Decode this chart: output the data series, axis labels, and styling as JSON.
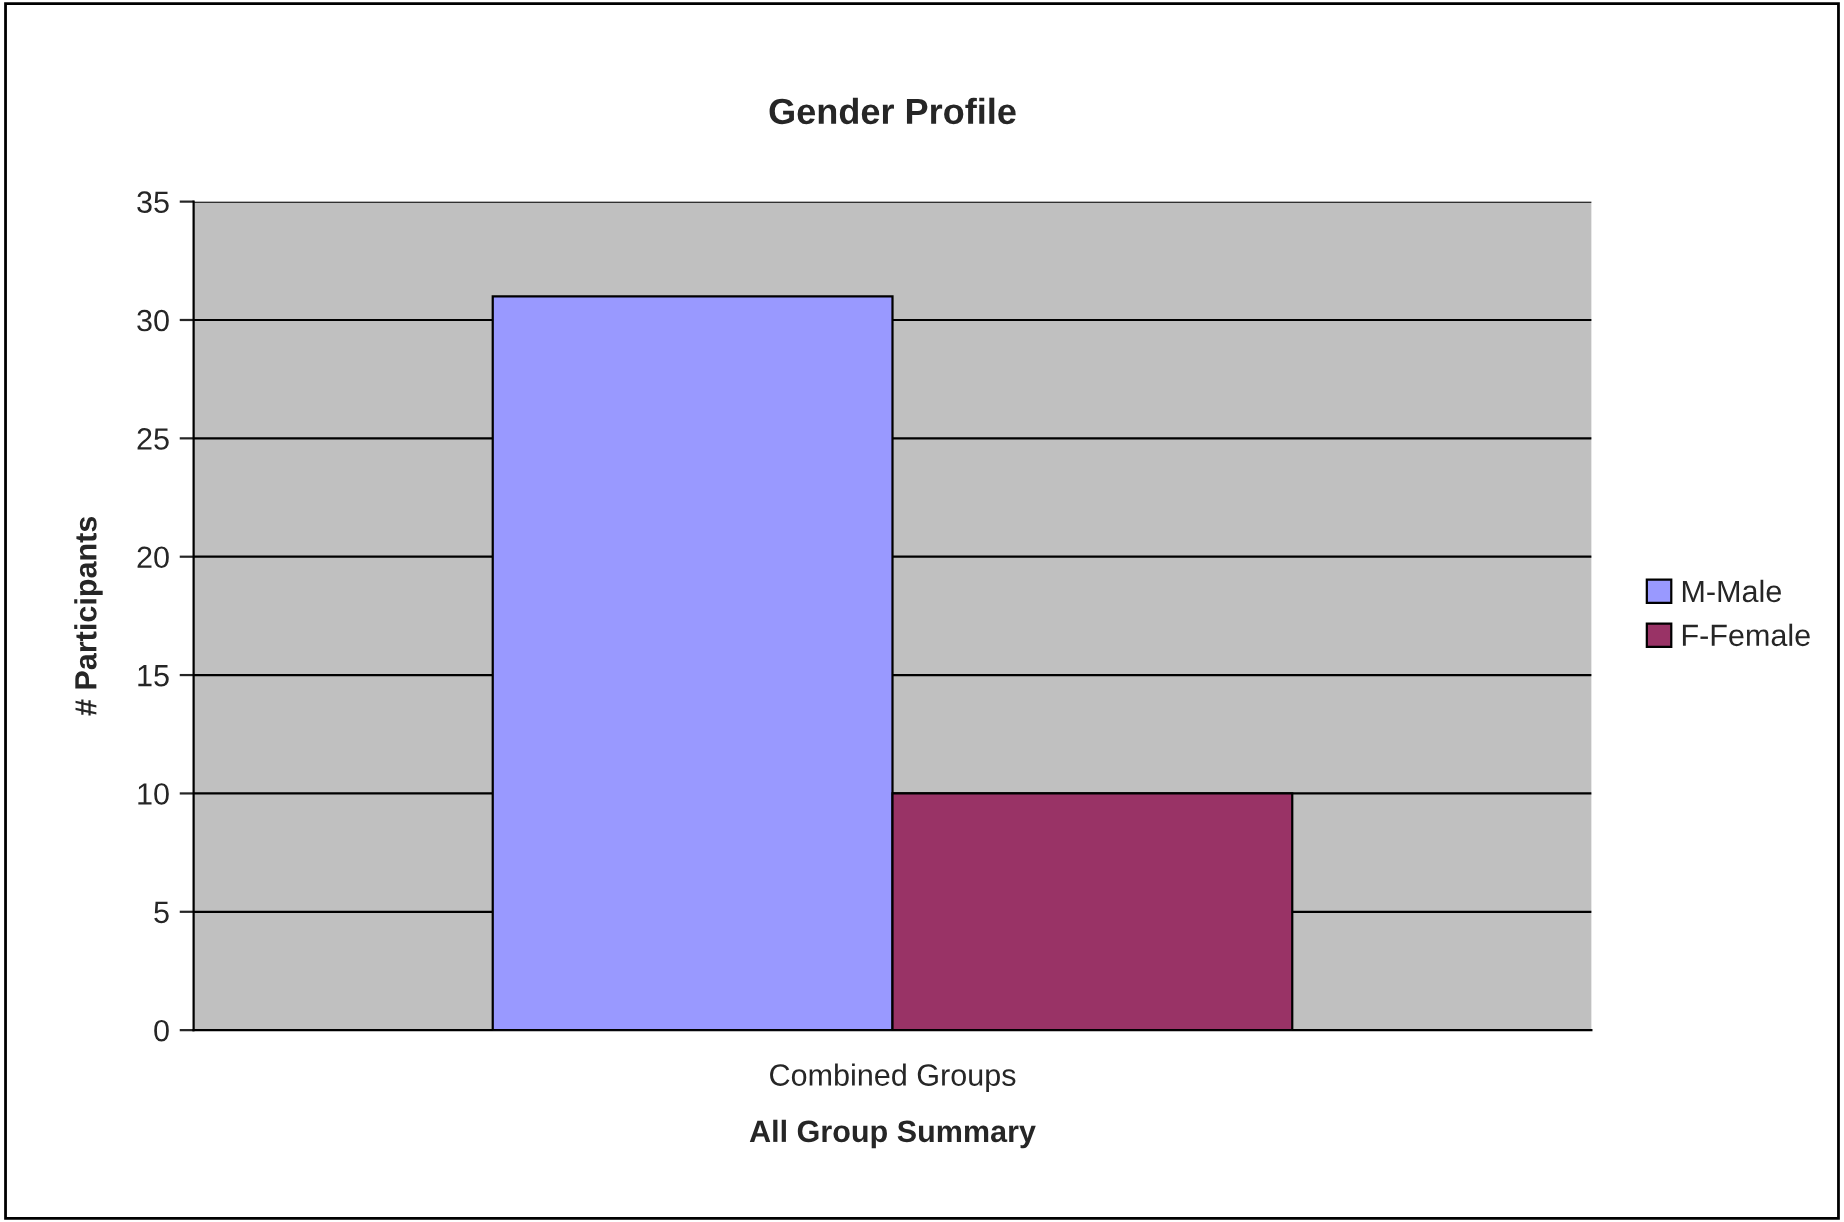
{
  "chart_data": {
    "type": "bar",
    "title": "Gender Profile",
    "xlabel": "All Group Summary",
    "ylabel": "# Participants",
    "categories": [
      "Combined Groups"
    ],
    "series": [
      {
        "name": "M-Male",
        "color": "#9999ff",
        "values": [
          31
        ]
      },
      {
        "name": "F-Female",
        "color": "#993366",
        "values": [
          10
        ]
      }
    ],
    "ylim": [
      0,
      35
    ],
    "yticks": [
      0,
      5,
      10,
      15,
      20,
      25,
      30,
      35
    ],
    "grid": "y",
    "legend": "right"
  }
}
